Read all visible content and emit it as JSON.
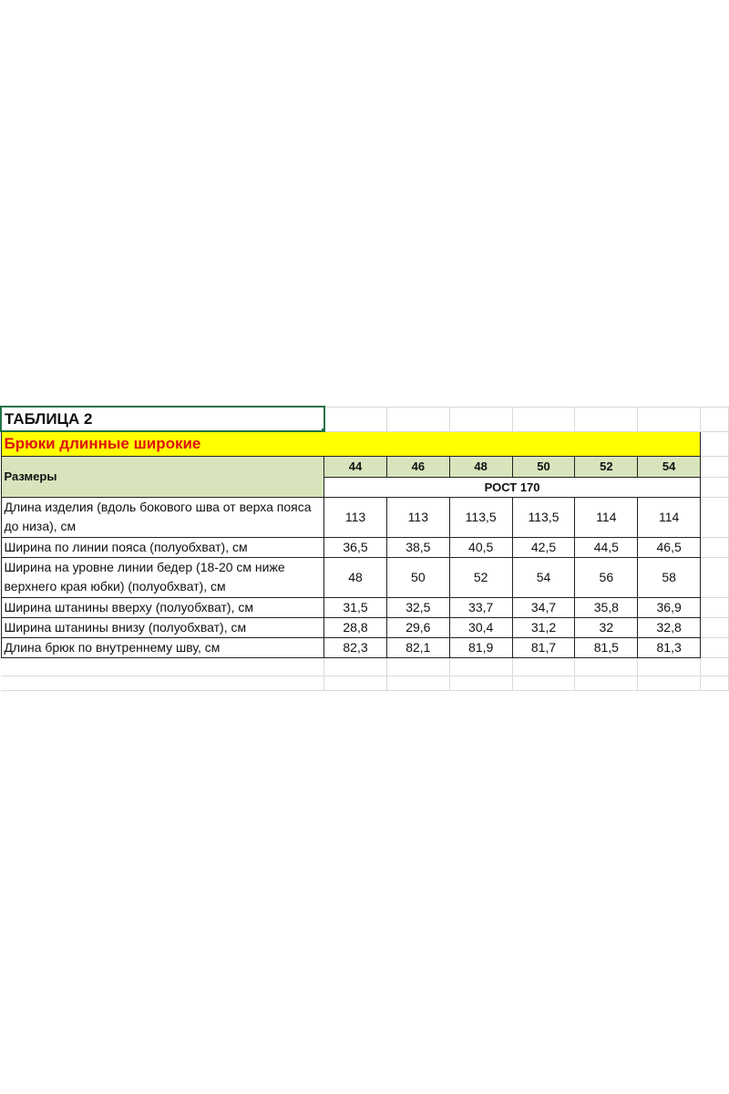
{
  "sheet": {
    "title": "ТАБЛИЦА 2",
    "subtitle": "Брюки длинные широкие",
    "sizes_label": "Размеры",
    "sizes": [
      "44",
      "46",
      "48",
      "50",
      "52",
      "54"
    ],
    "height_label": "РОСТ 170",
    "rows": [
      {
        "label": "Длина изделия (вдоль бокового шва от верха пояса до низа), см",
        "values": [
          "113",
          "113",
          "113,5",
          "113,5",
          "114",
          "114"
        ],
        "tall": true
      },
      {
        "label": "Ширина по линии пояса (полуобхват), см",
        "values": [
          "36,5",
          "38,5",
          "40,5",
          "42,5",
          "44,5",
          "46,5"
        ]
      },
      {
        "label": "Ширина на уровне линии бедер (18-20 см ниже верхнего края юбки) (полуобхват), см",
        "values": [
          "48",
          "50",
          "52",
          "54",
          "56",
          "58"
        ],
        "tall": true
      },
      {
        "label": "Ширина штанины вверху (полуобхват), см",
        "values": [
          "31,5",
          "32,5",
          "33,7",
          "34,7",
          "35,8",
          "36,9"
        ]
      },
      {
        "label": "Ширина штанины внизу (полуобхват), см",
        "values": [
          "28,8",
          "29,6",
          "30,4",
          "31,2",
          "32",
          "32,8"
        ]
      },
      {
        "label": "Длина брюк по внутреннему шву, см",
        "values": [
          "82,3",
          "82,1",
          "81,9",
          "81,7",
          "81,5",
          "81,3"
        ]
      }
    ]
  },
  "colors": {
    "highlight": "#ffff00",
    "subtitle_text": "#e01010",
    "header_fill": "#d8e4bc",
    "selection": "#217346"
  }
}
